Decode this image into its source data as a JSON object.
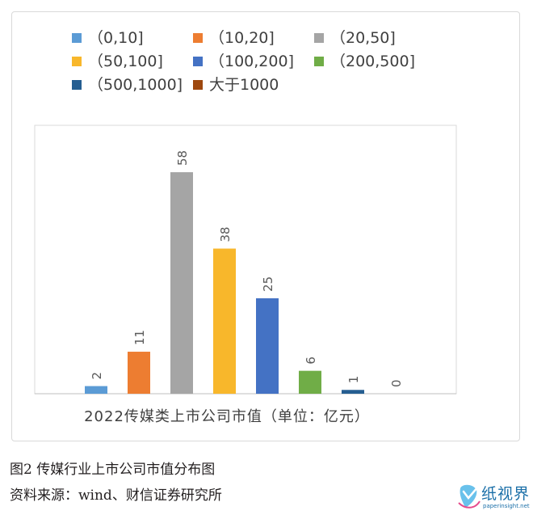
{
  "chart_data": {
    "type": "bar",
    "categories": [
      "（0,10]",
      "（10,20]",
      "（20,50]",
      "（50,100]",
      "（100,200]",
      "（200,500]",
      "（500,1000]",
      "大于1000"
    ],
    "values": [
      2,
      11,
      58,
      38,
      25,
      6,
      1,
      0
    ],
    "colors": [
      "#5b9bd5",
      "#ed7d31",
      "#a5a5a5",
      "#f8b72b",
      "#4472c4",
      "#70ad47",
      "#255e91",
      "#9e480e"
    ],
    "legend_labels": [
      "（0,10]",
      "（10,20]",
      "（20,50]",
      "（50,100]",
      "（100,200]",
      "（200,500]",
      "（500,1000]",
      "大于1000"
    ],
    "legend_position": "top",
    "xlabel": "2022传媒类上市公司市值（单位：亿元）",
    "ylim": [
      0,
      65
    ],
    "grid": false,
    "data_labels": [
      "2",
      "11",
      "58",
      "38",
      "25",
      "6",
      "1",
      "0"
    ]
  },
  "caption": {
    "title": "图2  传媒行业上市公司市值分布图",
    "source": "资料来源：wind、财信证券研究所"
  },
  "watermark": {
    "text": "纸视界",
    "subtext": "paperinsight.net",
    "color": "#1b6fa8"
  }
}
